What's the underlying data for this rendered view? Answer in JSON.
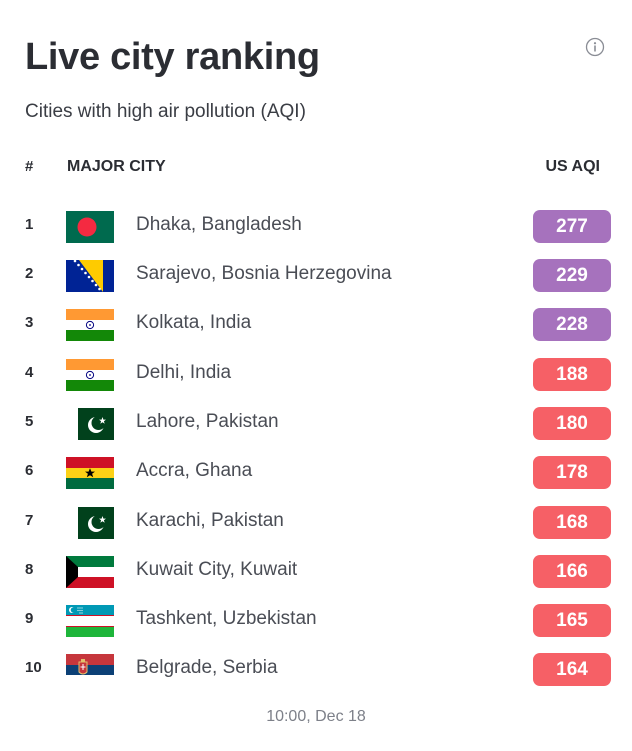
{
  "header": {
    "title": "Live city ranking",
    "subtitle": "Cities with high air pollution (AQI)"
  },
  "table": {
    "columns": {
      "rank": "#",
      "city": "MAJOR CITY",
      "aqi": "US AQI"
    },
    "rows": [
      {
        "rank": "1",
        "city": "Dhaka, Bangladesh",
        "aqi": "277",
        "flag_icon": "bangladesh-flag-icon",
        "level_color": "#a672bd"
      },
      {
        "rank": "2",
        "city": "Sarajevo, Bosnia Herzegovina",
        "aqi": "229",
        "flag_icon": "bosnia-flag-icon",
        "level_color": "#a672bd"
      },
      {
        "rank": "3",
        "city": "Kolkata, India",
        "aqi": "228",
        "flag_icon": "india-flag-icon",
        "level_color": "#a672bd"
      },
      {
        "rank": "4",
        "city": "Delhi, India",
        "aqi": "188",
        "flag_icon": "india-flag-icon",
        "level_color": "#f66066"
      },
      {
        "rank": "5",
        "city": "Lahore, Pakistan",
        "aqi": "180",
        "flag_icon": "pakistan-flag-icon",
        "level_color": "#f66066"
      },
      {
        "rank": "6",
        "city": "Accra, Ghana",
        "aqi": "178",
        "flag_icon": "ghana-flag-icon",
        "level_color": "#f66066"
      },
      {
        "rank": "7",
        "city": "Karachi, Pakistan",
        "aqi": "168",
        "flag_icon": "pakistan-flag-icon",
        "level_color": "#f66066"
      },
      {
        "rank": "8",
        "city": "Kuwait City, Kuwait",
        "aqi": "166",
        "flag_icon": "kuwait-flag-icon",
        "level_color": "#f66066"
      },
      {
        "rank": "9",
        "city": "Tashkent, Uzbekistan",
        "aqi": "165",
        "flag_icon": "uzbekistan-flag-icon",
        "level_color": "#f66066"
      },
      {
        "rank": "10",
        "city": "Belgrade, Serbia",
        "aqi": "164",
        "flag_icon": "serbia-flag-icon",
        "level_color": "#f66066"
      }
    ]
  },
  "footer": {
    "timestamp": "10:00, Dec 18"
  },
  "icons": {
    "info": "info-icon"
  }
}
